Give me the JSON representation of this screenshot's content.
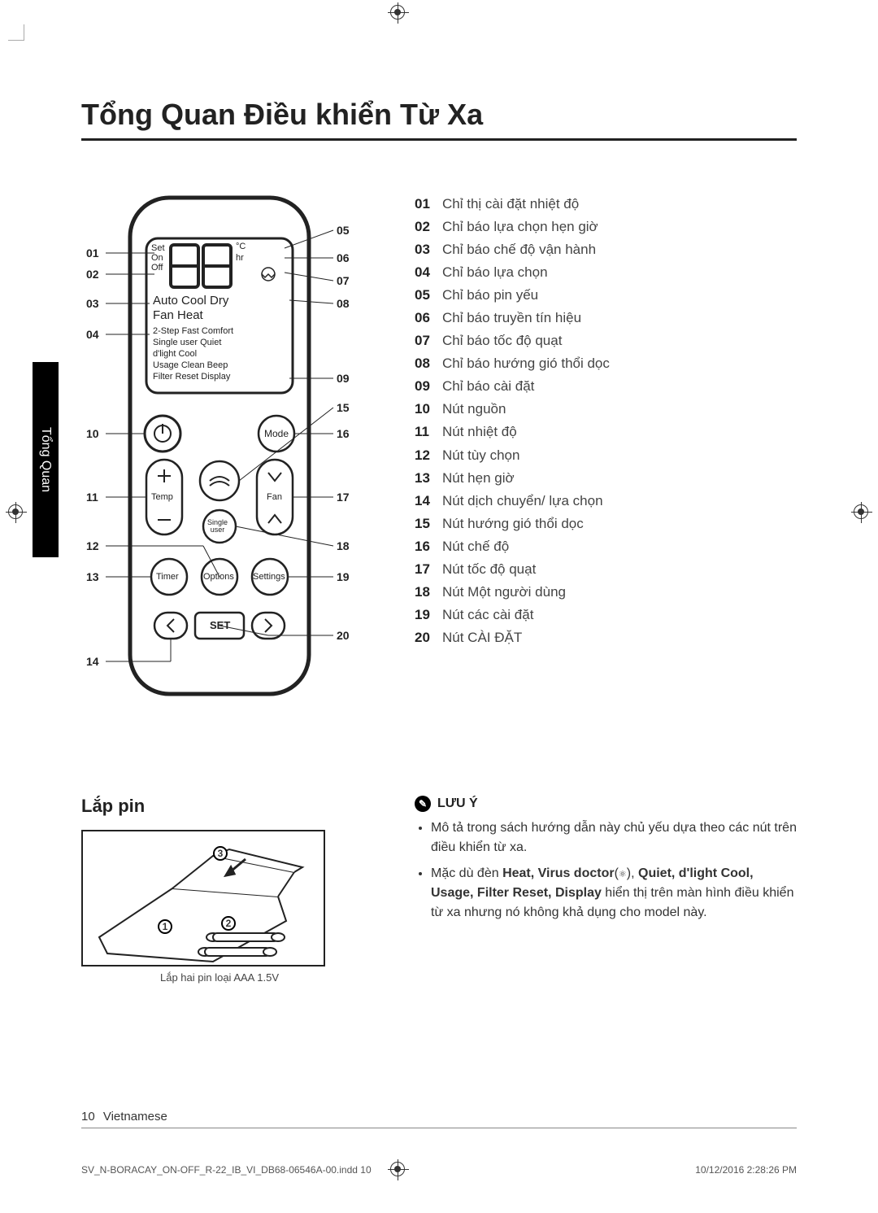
{
  "page": {
    "title": "Tổng Quan Điều khiển Từ Xa",
    "sidebar_tab": "Tổng Quan",
    "page_number": "10",
    "language_label": "Vietnamese",
    "print_file": "SV_N-BORACAY_ON-OFF_R-22_IB_VI_DB68-06546A-00.indd   10",
    "print_date": "10/12/2016   2:28:26 PM"
  },
  "remote": {
    "callouts_left": [
      "01",
      "02",
      "03",
      "04",
      "10",
      "11",
      "12",
      "13",
      "14"
    ],
    "callouts_right": [
      "05",
      "06",
      "07",
      "08",
      "09",
      "15",
      "16",
      "17",
      "18",
      "19",
      "20"
    ],
    "display": {
      "set": "Set",
      "on": "On",
      "off": "Off",
      "temp_unit": "°C",
      "hr": "hr",
      "modes_line1": "Auto Cool Dry",
      "modes_line2": "Fan   Heat",
      "row1": "2-Step   Fast   Comfort",
      "row2": "Single user   Quiet",
      "row3": "d'light Cool",
      "row4": "Usage    Clean    Beep",
      "row5": "Filter Reset      Display"
    },
    "buttons": {
      "mode": "Mode",
      "temp": "Temp",
      "fan": "Fan",
      "single_user": "Single\nuser",
      "timer": "Timer",
      "options": "Options",
      "settings": "Settings",
      "set": "SET"
    }
  },
  "legend": [
    {
      "n": "01",
      "t": "Chỉ thị cài đặt nhiệt độ"
    },
    {
      "n": "02",
      "t": "Chỉ báo lựa chọn hẹn giờ"
    },
    {
      "n": "03",
      "t": "Chỉ báo chế độ vận hành"
    },
    {
      "n": "04",
      "t": "Chỉ báo lựa chọn"
    },
    {
      "n": "05",
      "t": "Chỉ báo pin yếu"
    },
    {
      "n": "06",
      "t": "Chỉ báo truyền tín hiệu"
    },
    {
      "n": "07",
      "t": "Chỉ báo tốc độ quạt"
    },
    {
      "n": "08",
      "t": "Chỉ báo hướng gió thổi dọc"
    },
    {
      "n": "09",
      "t": "Chỉ báo cài đặt"
    },
    {
      "n": "10",
      "t": "Nút nguồn"
    },
    {
      "n": "11",
      "t": "Nút nhiệt độ"
    },
    {
      "n": "12",
      "t": "Nút tùy chọn"
    },
    {
      "n": "13",
      "t": "Nút hẹn giờ"
    },
    {
      "n": "14",
      "t": "Nút dịch chuyển/ lựa chọn"
    },
    {
      "n": "15",
      "t": "Nút hướng gió thổi dọc"
    },
    {
      "n": "16",
      "t": "Nút chế độ"
    },
    {
      "n": "17",
      "t": "Nút tốc độ quạt"
    },
    {
      "n": "18",
      "t": "Nút Một người dùng"
    },
    {
      "n": "19",
      "t": "Nút các cài đặt"
    },
    {
      "n": "20",
      "t": "Nút CÀI ĐẶT"
    }
  ],
  "battery": {
    "heading": "Lắp pin",
    "caption": "Lắp hai pin loại AAA 1.5V",
    "steps": [
      "1",
      "2",
      "3"
    ]
  },
  "note": {
    "heading": "LƯU Ý",
    "items": [
      "Mô tả trong sách hướng dẫn này chủ yếu dựa theo các nút trên điều khiển từ xa.",
      "Mặc dù đèn <b>Heat, Virus doctor</b>(<span style='font-size:11px'>⚛</span>), <b>Quiet, d'light Cool, Usage, Filter Reset, Display</b> hiển thị trên màn hình điều khiển từ xa nhưng nó không khả dụng cho  model này."
    ]
  },
  "style": {
    "text_color": "#333333",
    "heading_color": "#222222",
    "border_color": "#222222",
    "background": "#ffffff"
  }
}
